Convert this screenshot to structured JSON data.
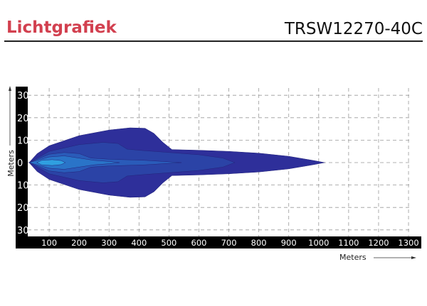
{
  "header": {
    "title": "Lichtgrafiek",
    "model": "TRSW12270-40C"
  },
  "chart_data": {
    "type": "area",
    "title": "",
    "xlabel": "Meters",
    "ylabel": "Meters",
    "xlim": [
      0,
      1300
    ],
    "ylim": [
      -30,
      30
    ],
    "x_ticks": [
      "100",
      "200",
      "300",
      "400",
      "500",
      "600",
      "700",
      "800",
      "900",
      "1000",
      "1100",
      "1200",
      "1300"
    ],
    "y_ticks": [
      "30",
      "20",
      "10",
      "0",
      "10",
      "20",
      "30"
    ],
    "y_tick_values": [
      30,
      20,
      10,
      0,
      -10,
      -20,
      -30
    ],
    "grid": true,
    "grid_style": "dashed",
    "contours": [
      {
        "color": "#2e2f9a",
        "half_profile": [
          [
            33,
            0
          ],
          [
            60,
            4
          ],
          [
            100,
            7.5
          ],
          [
            200,
            12
          ],
          [
            300,
            14.5
          ],
          [
            370,
            15.5
          ],
          [
            420,
            15.3
          ],
          [
            450,
            13
          ],
          [
            480,
            9
          ],
          [
            510,
            5.8
          ],
          [
            600,
            5.5
          ],
          [
            700,
            5
          ],
          [
            800,
            4.2
          ],
          [
            900,
            2.8
          ],
          [
            980,
            1
          ],
          [
            1020,
            0
          ]
        ]
      },
      {
        "color": "#2b43a6",
        "half_profile": [
          [
            33,
            0
          ],
          [
            100,
            5
          ],
          [
            200,
            8
          ],
          [
            280,
            9
          ],
          [
            330,
            8.5
          ],
          [
            360,
            6
          ],
          [
            400,
            5.5
          ],
          [
            500,
            4.5
          ],
          [
            600,
            3.5
          ],
          [
            680,
            2
          ],
          [
            720,
            0
          ]
        ]
      },
      {
        "color": "#2a5bb9",
        "half_profile": [
          [
            33,
            0
          ],
          [
            100,
            3.7
          ],
          [
            150,
            4.5
          ],
          [
            200,
            4
          ],
          [
            240,
            2
          ],
          [
            300,
            1.5
          ],
          [
            420,
            1
          ],
          [
            542,
            0
          ]
        ]
      },
      {
        "color": "#2a74c8",
        "half_profile": [
          [
            33,
            0
          ],
          [
            100,
            2.5
          ],
          [
            150,
            3
          ],
          [
            200,
            2
          ],
          [
            250,
            1
          ],
          [
            300,
            0.5
          ],
          [
            335,
            0
          ]
        ]
      },
      {
        "color": "#2f9fe0",
        "half_profile": [
          [
            59,
            0
          ],
          [
            75,
            1
          ],
          [
            110,
            1.3
          ],
          [
            140,
            0.9
          ],
          [
            154,
            0
          ]
        ]
      }
    ]
  }
}
